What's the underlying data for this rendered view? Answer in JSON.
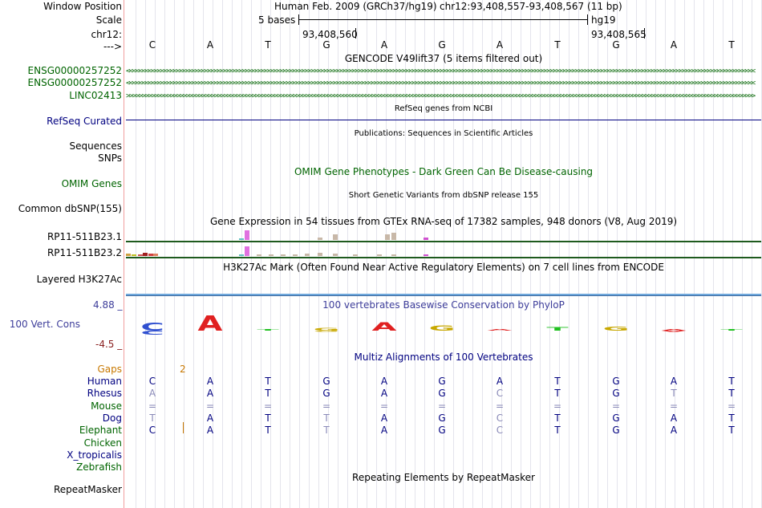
{
  "header": {
    "window_position_label": "Window Position",
    "assembly_text": "Human Feb. 2009 (GRCh37/hg19)",
    "coords_text": "chr12:93,408,557-93,408,567 (11 bp)",
    "scale_label": "Scale",
    "scale_text": "5 bases",
    "scale_db": "hg19",
    "chrom_label": "chr12:",
    "pos_left": "93,408,560",
    "pos_right": "93,408,565",
    "strand_label": "--->"
  },
  "bases": [
    "C",
    "A",
    "T",
    "G",
    "A",
    "G",
    "A",
    "T",
    "G",
    "A",
    "T"
  ],
  "tracks": {
    "gencode": {
      "title": "GENCODE V49lift37 (5 items filtered out)",
      "items": [
        {
          "label": "ENSG00000257252",
          "strand": "<"
        },
        {
          "label": "ENSG00000257252",
          "strand": "<"
        },
        {
          "label": "LINC02413",
          "strand": ">"
        }
      ]
    },
    "refseq": {
      "title": "RefSeq genes from NCBI",
      "label": "RefSeq Curated"
    },
    "publications": {
      "title": "Publications: Sequences in Scientific Articles",
      "labels": [
        "Sequences",
        "SNPs"
      ]
    },
    "omim": {
      "title": "OMIM Gene Phenotypes - Dark Green Can Be Disease-causing",
      "label": "OMIM Genes"
    },
    "dbsnp": {
      "title": "Short Genetic Variants from dbSNP release 155",
      "label": "Common dbSNP(155)"
    },
    "gtex": {
      "title": "Gene Expression in 54 tissues from GTEx RNA-seq of 17382 samples, 948 donors (V8, Aug 2019)",
      "labels": [
        "RP11-511B23.1",
        "RP11-511B23.2"
      ],
      "line_color": "#1e5a1e"
    },
    "h3k27ac": {
      "title": "H3K27Ac Mark (Often Found Near Active Regulatory Elements) on 7 cell lines from ENCODE",
      "label": "Layered H3K27Ac"
    },
    "phylop": {
      "title": "100 vertebrates Basewise Conservation by PhyloP",
      "label": "100 Vert. Cons",
      "max_label": "4.88 _",
      "min_label": "-4.5 _"
    },
    "multiz": {
      "title": "Multiz Alignments of 100 Vertebrates",
      "gaps_label": "Gaps",
      "gaps_value": "2",
      "species": [
        {
          "name": "Human",
          "color": "#000080",
          "seq": [
            "C",
            "A",
            "T",
            "G",
            "A",
            "G",
            "A",
            "T",
            "G",
            "A",
            "T"
          ],
          "dim": []
        },
        {
          "name": "Rhesus",
          "color": "#000080",
          "seq": [
            "A",
            "A",
            "T",
            "G",
            "A",
            "G",
            "C",
            "T",
            "G",
            "T",
            "T"
          ],
          "dim": [
            0,
            6,
            9
          ]
        },
        {
          "name": "Mouse",
          "color": "#006400",
          "seq": [
            "=",
            "=",
            "=",
            "=",
            "=",
            "=",
            "=",
            "=",
            "=",
            "=",
            "="
          ],
          "dim": [
            0,
            1,
            2,
            3,
            4,
            5,
            6,
            7,
            8,
            9,
            10
          ]
        },
        {
          "name": "Dog",
          "color": "#000080",
          "seq": [
            "T",
            "A",
            "T",
            "T",
            "A",
            "G",
            "C",
            "T",
            "G",
            "A",
            "T"
          ],
          "dim": [
            0,
            3,
            6
          ]
        },
        {
          "name": "Elephant",
          "color": "#006400",
          "seq": [
            "C",
            "A",
            "T",
            "T",
            "A",
            "G",
            "C",
            "T",
            "G",
            "A",
            "T"
          ],
          "dim": [
            3,
            6
          ]
        },
        {
          "name": "Chicken",
          "color": "#006400",
          "seq": [],
          "dim": []
        },
        {
          "name": "X_tropicalis",
          "color": "#000080",
          "seq": [],
          "dim": []
        },
        {
          "name": "Zebrafish",
          "color": "#006400",
          "seq": [],
          "dim": []
        }
      ]
    },
    "repeatmasker": {
      "title": "Repeating Elements by RepeatMasker",
      "label": "RepeatMasker"
    }
  },
  "colors": {
    "gene_green": "#006400",
    "navy": "#000080",
    "phylop_blue": "#3d3d9a",
    "phylop_red": "#8a2020",
    "gaps_orange": "#c87800"
  }
}
